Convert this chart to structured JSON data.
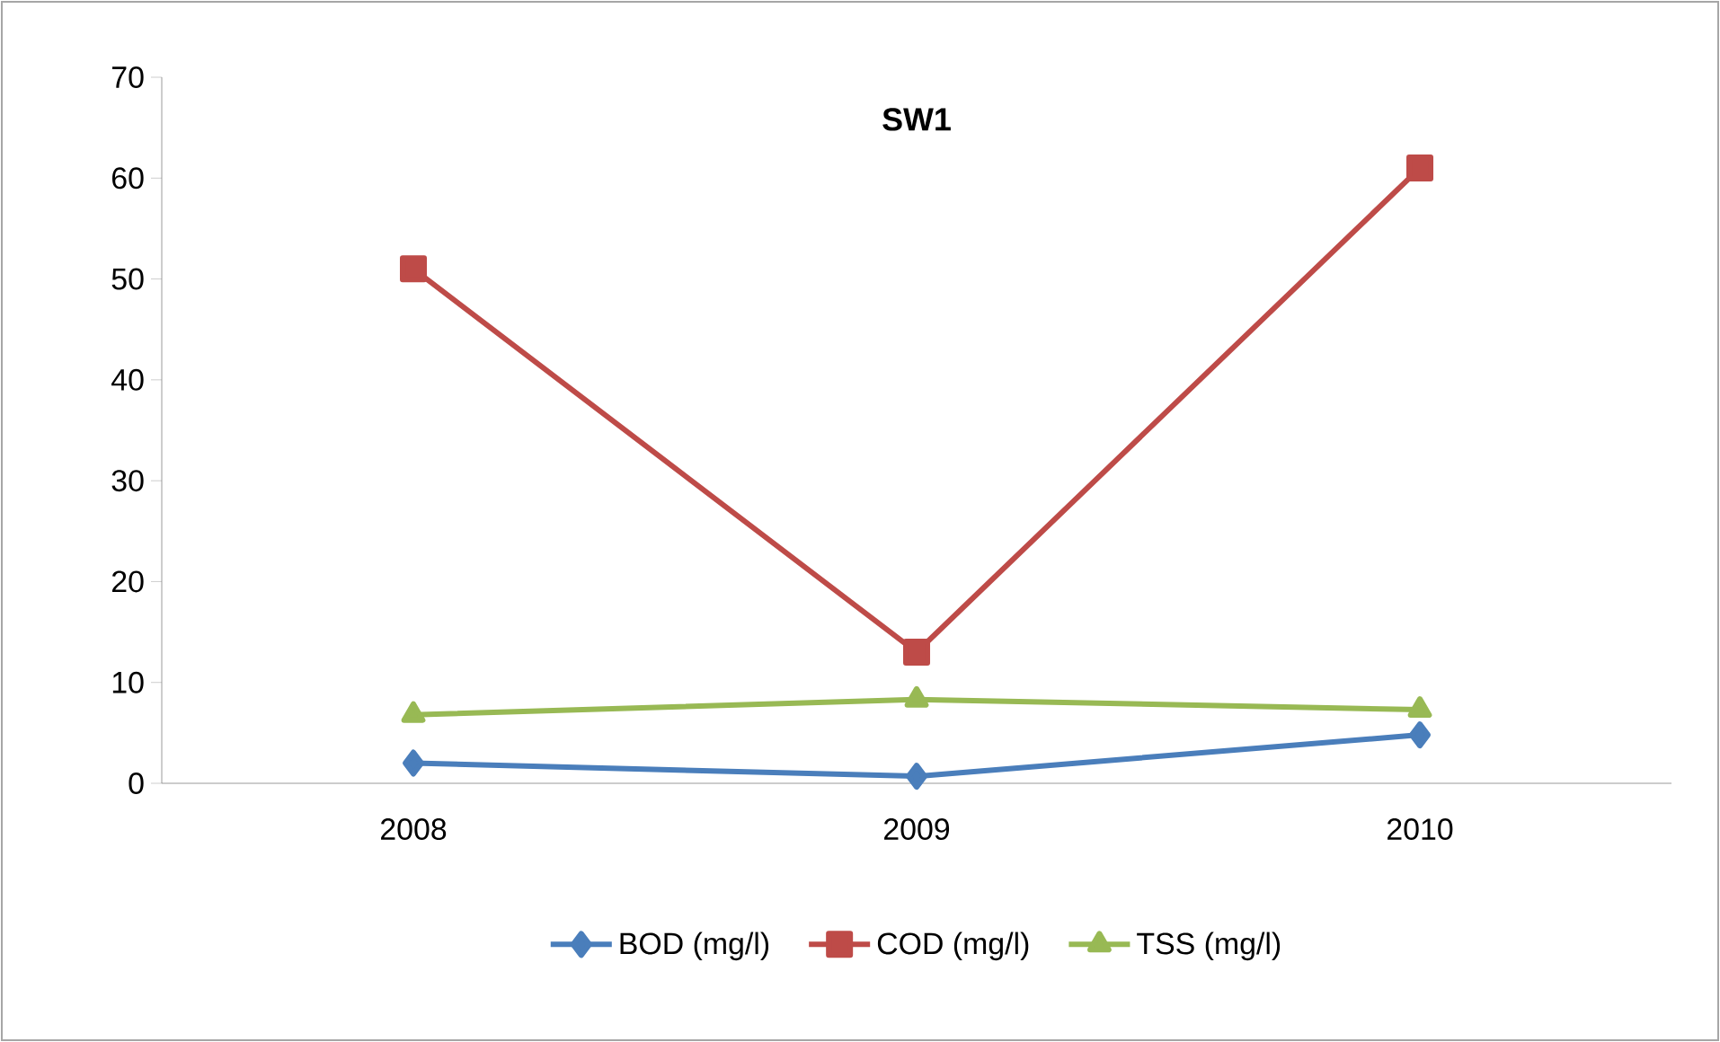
{
  "chart_data": {
    "type": "line",
    "title": "SW1",
    "categories": [
      "2008",
      "2009",
      "2010"
    ],
    "series": [
      {
        "name": "BOD (mg/l)",
        "color": "#4a7ebb",
        "marker": "diamond",
        "values": [
          2,
          0.7,
          4.8
        ]
      },
      {
        "name": "COD (mg/l)",
        "color": "#be4b48",
        "marker": "square",
        "values": [
          51,
          13,
          61
        ]
      },
      {
        "name": "TSS (mg/l)",
        "color": "#98b954",
        "marker": "triangle",
        "values": [
          6.8,
          8.3,
          7.3
        ]
      }
    ],
    "ylim": [
      0,
      70
    ],
    "yticks": [
      0,
      10,
      20,
      30,
      40,
      50,
      60,
      70
    ],
    "legend": "bottom",
    "line_style": "solid"
  }
}
